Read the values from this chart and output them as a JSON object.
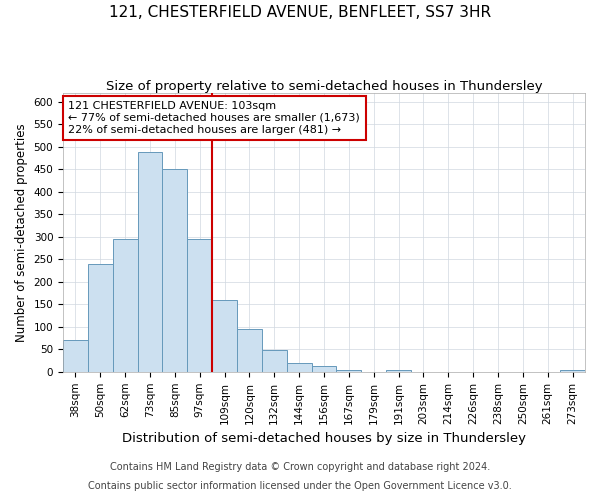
{
  "title": "121, CHESTERFIELD AVENUE, BENFLEET, SS7 3HR",
  "subtitle": "Size of property relative to semi-detached houses in Thundersley",
  "xlabel": "Distribution of semi-detached houses by size in Thundersley",
  "ylabel": "Number of semi-detached properties",
  "categories": [
    "38sqm",
    "50sqm",
    "62sqm",
    "73sqm",
    "85sqm",
    "97sqm",
    "109sqm",
    "120sqm",
    "132sqm",
    "144sqm",
    "156sqm",
    "167sqm",
    "179sqm",
    "191sqm",
    "203sqm",
    "214sqm",
    "226sqm",
    "238sqm",
    "250sqm",
    "261sqm",
    "273sqm"
  ],
  "values": [
    70,
    240,
    295,
    488,
    450,
    295,
    160,
    95,
    48,
    20,
    13,
    5,
    0,
    5,
    0,
    0,
    0,
    0,
    0,
    0,
    5
  ],
  "bar_color": "#cce0f0",
  "bar_edge_color": "#6699bb",
  "annotation_text_line1": "121 CHESTERFIELD AVENUE: 103sqm",
  "annotation_text_line2": "← 77% of semi-detached houses are smaller (1,673)",
  "annotation_text_line3": "22% of semi-detached houses are larger (481) →",
  "vline_color": "#cc0000",
  "annotation_box_color": "#ffffff",
  "annotation_box_edge": "#cc0000",
  "footer_line1": "Contains HM Land Registry data © Crown copyright and database right 2024.",
  "footer_line2": "Contains public sector information licensed under the Open Government Licence v3.0.",
  "ylim": [
    0,
    620
  ],
  "yticks": [
    0,
    50,
    100,
    150,
    200,
    250,
    300,
    350,
    400,
    450,
    500,
    550,
    600
  ],
  "title_fontsize": 11,
  "subtitle_fontsize": 9.5,
  "xlabel_fontsize": 9.5,
  "ylabel_fontsize": 8.5,
  "tick_fontsize": 7.5,
  "annotation_fontsize": 8,
  "footer_fontsize": 7,
  "background_color": "#ffffff",
  "grid_color": "#d0d8e0",
  "vline_x_index": 5.5
}
